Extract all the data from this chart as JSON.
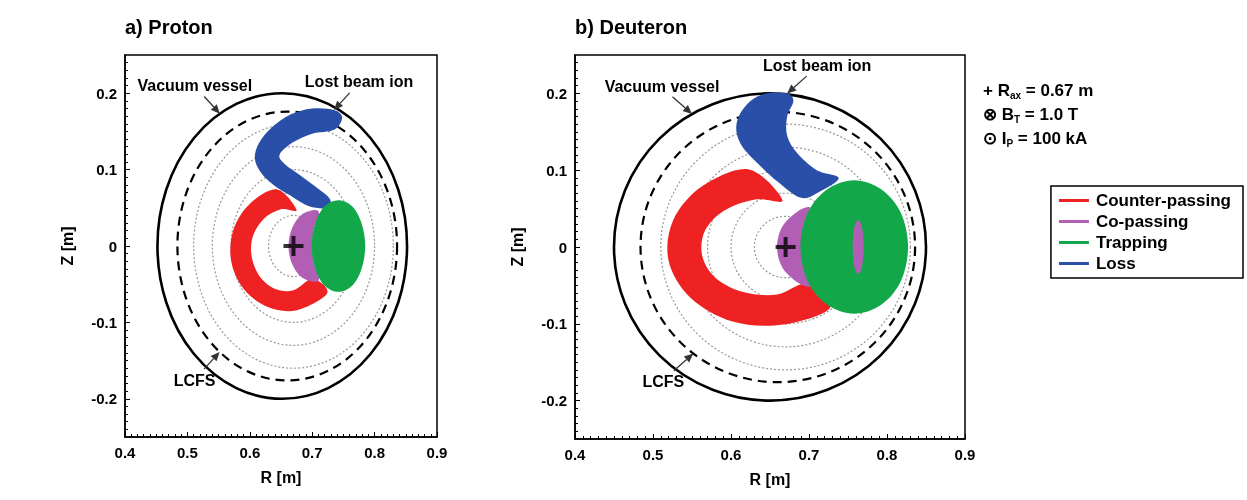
{
  "chart_data": [
    {
      "type": "area",
      "title": "a) Proton",
      "xlabel": "R [m]",
      "ylabel": "Z [m]",
      "xlim": [
        0.4,
        0.9
      ],
      "xticks": [
        0.4,
        0.5,
        0.6,
        0.7,
        0.8,
        0.9
      ],
      "ylim": [
        -0.25,
        0.25
      ],
      "yticks": [
        -0.2,
        -0.1,
        0,
        0.1,
        0.2
      ],
      "annotations": [
        "Vacuum vessel",
        "LCFS",
        {
          "text": "Lost beam ion",
          "x": 0.735,
          "y": 0.178
        }
      ],
      "series": [
        {
          "color": "#ee2222",
          "x": [
            0.644,
            0.601,
            0.574,
            0.57,
            0.59,
            0.629,
            0.676,
            0.724,
            0.701,
            0.67,
            0.64,
            0.616,
            0.603,
            0.605,
            0.623,
            0.65,
            0.675
          ],
          "values": [
            0.074,
            0.056,
            0.022,
            -0.019,
            -0.056,
            -0.08,
            -0.084,
            -0.062,
            -0.043,
            -0.058,
            -0.056,
            -0.04,
            -0.014,
            0.013,
            0.036,
            0.048,
            0.047
          ]
        },
        {
          "color": "#2a4fa8",
          "x": [
            0.725,
            0.695,
            0.665,
            0.638,
            0.618,
            0.608,
            0.615,
            0.635,
            0.665,
            0.7,
            0.735,
            0.748,
            0.735,
            0.7,
            0.67,
            0.648,
            0.655,
            0.68,
            0.705,
            0.728
          ],
          "values": [
            0.05,
            0.052,
            0.066,
            0.08,
            0.096,
            0.115,
            0.135,
            0.155,
            0.172,
            0.18,
            0.178,
            0.168,
            0.152,
            0.147,
            0.136,
            0.12,
            0.108,
            0.093,
            0.078,
            0.062
          ]
        },
        {
          "color": "#b05fb5",
          "x": [
            0.705,
            0.683,
            0.668,
            0.662,
            0.668,
            0.683,
            0.705,
            0.711,
            0.703,
            0.7,
            0.703,
            0.711
          ],
          "values": [
            0.047,
            0.041,
            0.024,
            0,
            -0.024,
            -0.041,
            -0.047,
            -0.041,
            -0.024,
            0,
            0.024,
            0.041
          ]
        },
        {
          "color": "#12a84a",
          "x": [
            0.785,
            0.779,
            0.764,
            0.742,
            0.72,
            0.705,
            0.699,
            0.705,
            0.72,
            0.742,
            0.764,
            0.779
          ],
          "values": [
            0,
            0.03,
            0.052,
            0.06,
            0.052,
            0.03,
            0,
            -0.03,
            -0.052,
            -0.06,
            -0.052,
            -0.03
          ]
        },
        {
          "type": "scatter",
          "marker": "cross",
          "color": "#000000",
          "x": [
            0.67
          ],
          "values": [
            0
          ]
        }
      ]
    },
    {
      "type": "area",
      "title": "b) Deuteron",
      "xlabel": "R [m]",
      "ylabel": "Z [m]",
      "xlim": [
        0.4,
        0.9
      ],
      "xticks": [
        0.4,
        0.5,
        0.6,
        0.7,
        0.8,
        0.9
      ],
      "ylim": [
        -0.25,
        0.25
      ],
      "yticks": [
        -0.2,
        -0.1,
        0,
        0.1,
        0.2
      ],
      "legend": "right",
      "annotations": [
        "Vacuum vessel",
        "LCFS",
        {
          "text": "Lost beam ion",
          "x": 0.672,
          "y": 0.2
        },
        "+ R$_{ax}$ = 0.67 m",
        "⊗ B$_{T}$ = 1.0 T",
        "⊙ I$_{P}$ = 100 kA"
      ],
      "series": [
        {
          "name": "Counter-passing",
          "color": "#ee2222",
          "x": [
            0.623,
            0.563,
            0.526,
            0.52,
            0.548,
            0.602,
            0.667,
            0.727,
            0.698,
            0.659,
            0.617,
            0.581,
            0.563,
            0.567,
            0.592,
            0.631,
            0.666
          ],
          "values": [
            0.101,
            0.079,
            0.035,
            -0.018,
            -0.066,
            -0.097,
            -0.101,
            -0.079,
            -0.048,
            -0.062,
            -0.059,
            -0.041,
            -0.011,
            0.022,
            0.048,
            0.062,
            0.061
          ]
        },
        {
          "name": "Co-passing",
          "color": "#b05fb5",
          "x": [
            0.7,
            0.685,
            0.666,
            0.659,
            0.666,
            0.685,
            0.7,
            0.7,
            0.693,
            0.69,
            0.693,
            0.7
          ],
          "values": [
            0.052,
            0.046,
            0.027,
            0,
            -0.027,
            -0.046,
            -0.052,
            -0.046,
            -0.027,
            0,
            0.027,
            0.046
          ]
        },
        {
          "name": "Trapping",
          "color": "#12a84a",
          "x": [
            0.827,
            0.818,
            0.793,
            0.758,
            0.723,
            0.698,
            0.689,
            0.698,
            0.723,
            0.758,
            0.793,
            0.818
          ],
          "values": [
            0,
            0.044,
            0.075,
            0.087,
            0.075,
            0.044,
            0,
            -0.044,
            -0.075,
            -0.087,
            -0.075,
            -0.044
          ]
        },
        {
          "color": "#b05fb5",
          "x": [
            0.77,
            0.768,
            0.763,
            0.758,
            0.756,
            0.758,
            0.763,
            0.768
          ],
          "values": [
            0,
            0.025,
            0.035,
            0.025,
            0,
            -0.025,
            -0.035,
            -0.025
          ]
        },
        {
          "name": "Loss",
          "color": "#2a4fa8",
          "x": [
            0.738,
            0.71,
            0.685,
            0.672,
            0.672,
            0.68,
            0.672,
            0.645,
            0.625,
            0.61,
            0.607,
            0.615,
            0.635,
            0.66,
            0.69,
            0.715
          ],
          "values": [
            0.09,
            0.1,
            0.122,
            0.145,
            0.17,
            0.19,
            0.2,
            0.2,
            0.19,
            0.17,
            0.15,
            0.13,
            0.108,
            0.085,
            0.064,
            0.073
          ]
        },
        {
          "type": "scatter",
          "marker": "cross",
          "color": "#000000",
          "x": [
            0.67
          ],
          "values": [
            0
          ]
        }
      ]
    }
  ]
}
